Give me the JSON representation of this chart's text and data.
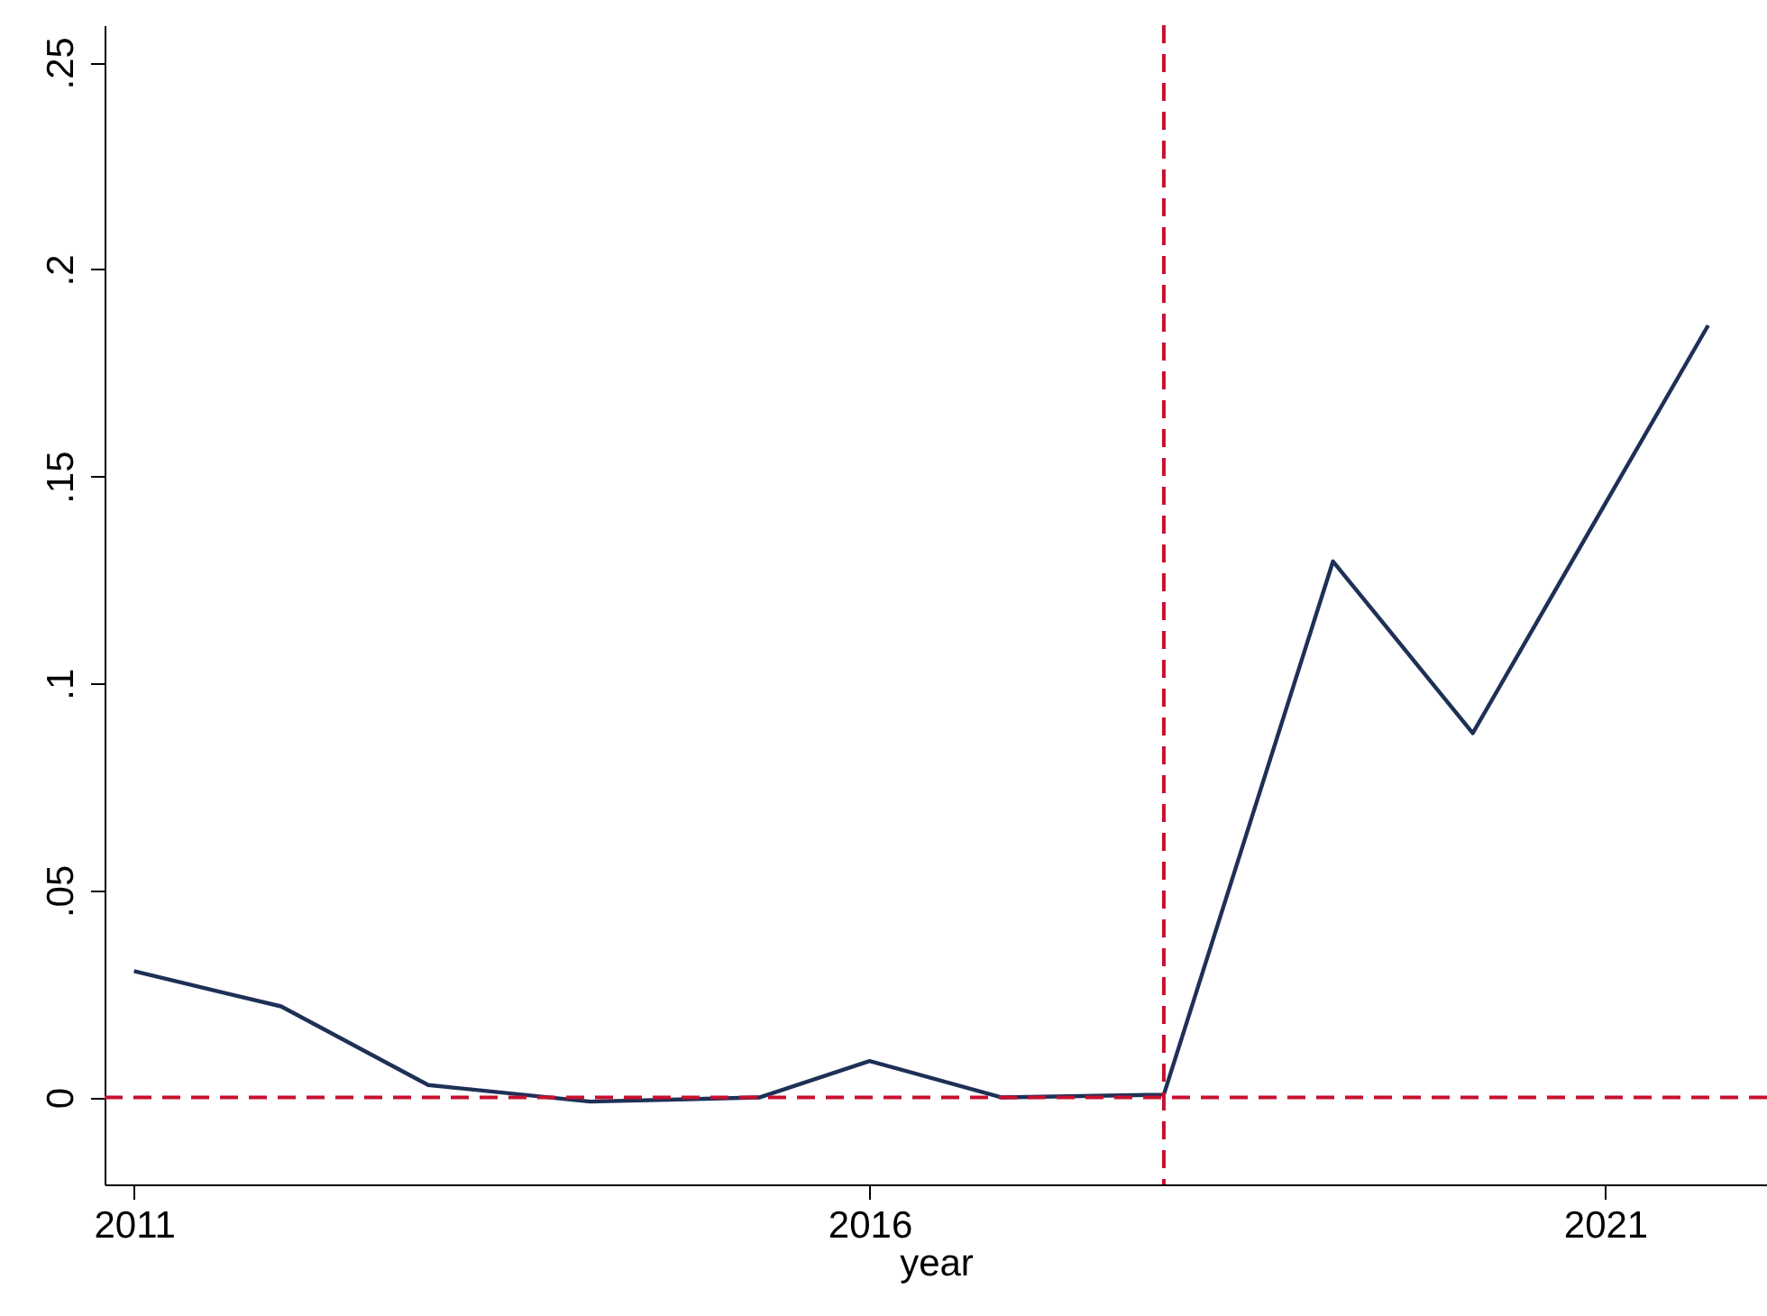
{
  "chart_data": {
    "type": "line",
    "xlabel": "year",
    "x": [
      2011,
      2012,
      2013,
      2014.1,
      2015.25,
      2016,
      2016.9,
      2018,
      2019.15,
      2020.1,
      2021.7
    ],
    "series": [
      {
        "color": "#1f3057",
        "values": [
          0.0305,
          0.022,
          0.003,
          -0.001,
          0,
          0.0088,
          0,
          0.0007,
          0.1295,
          0.088,
          0.1865
        ]
      }
    ],
    "xlim": [
      2010.8,
      2022.1
    ],
    "xticks": [
      2011,
      2016,
      2021
    ],
    "ylim": [
      -0.021,
      0.259
    ],
    "yticks": [
      0,
      {
        "value": 0.05,
        "label": ".05"
      },
      {
        "value": 0.1,
        "label": ".1"
      },
      {
        "value": 0.15,
        "label": ".15"
      },
      {
        "value": 0.2,
        "label": ".2"
      },
      {
        "value": 0.25,
        "label": ".25"
      }
    ],
    "ref_lines": [
      {
        "axis": "x",
        "value": 2018,
        "color": "#c8102e",
        "line_style": "dashed"
      },
      {
        "axis": "y",
        "value": 0,
        "color": "#c8102e",
        "line_style": "dashed"
      }
    ],
    "marker": "none",
    "line_style": "solid"
  }
}
